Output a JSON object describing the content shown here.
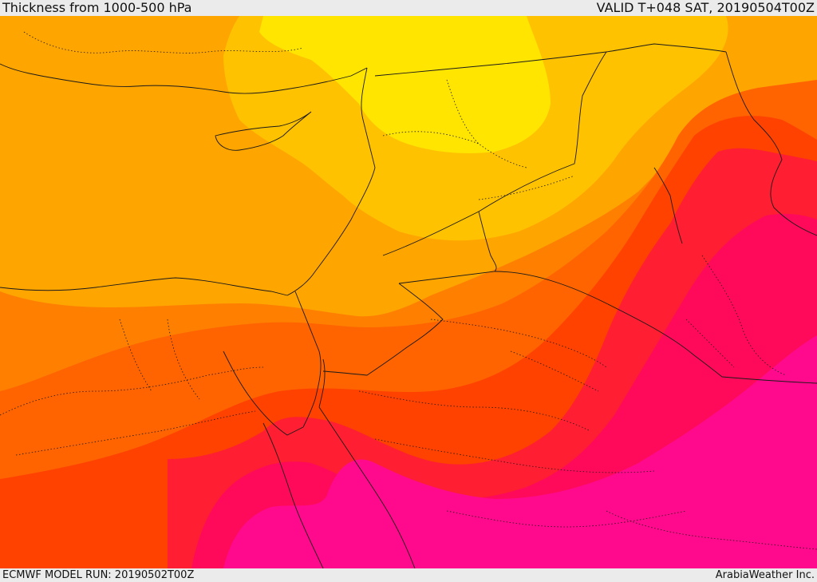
{
  "header": {
    "title": "Thickness from 1000-500 hPa",
    "valid_time": "VALID T+048 SAT, 20190504T00Z"
  },
  "footer": {
    "model_run": "ECMWF MODEL RUN: 20190502T00Z",
    "credit": "ArabiaWeather Inc."
  },
  "map": {
    "bands": [
      {
        "name": "band-1",
        "color": "#ffe500"
      },
      {
        "name": "band-2",
        "color": "#ffc200"
      },
      {
        "name": "band-3",
        "color": "#ffa500"
      },
      {
        "name": "band-4",
        "color": "#ff8000"
      },
      {
        "name": "band-5",
        "color": "#ff6400"
      },
      {
        "name": "band-6",
        "color": "#ff4200"
      },
      {
        "name": "band-7",
        "color": "#ff1e32"
      },
      {
        "name": "band-8",
        "color": "#ff0a5a"
      },
      {
        "name": "band-9",
        "color": "#ff0a8c"
      }
    ],
    "border_color": "#1a1a1a"
  }
}
